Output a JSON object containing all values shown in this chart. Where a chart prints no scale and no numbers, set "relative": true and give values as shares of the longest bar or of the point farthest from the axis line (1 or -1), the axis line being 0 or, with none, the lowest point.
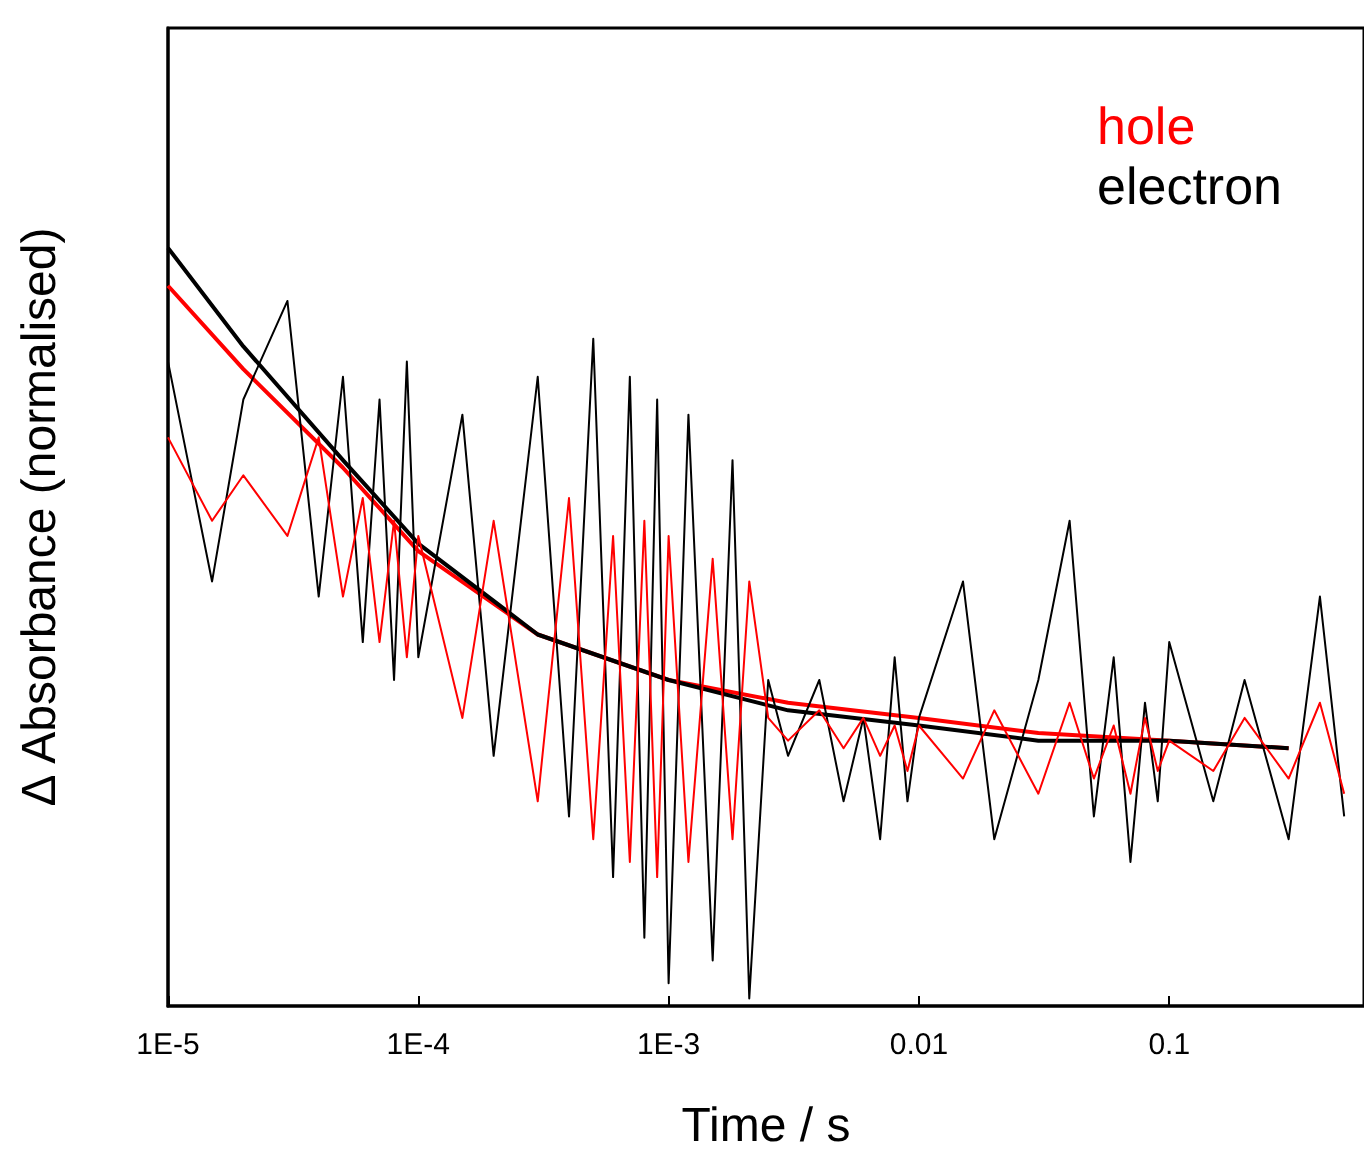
{
  "chart_data": {
    "type": "line",
    "xlabel": "Time / s",
    "ylabel": "Δ Absorbance (normalised)",
    "log": "x",
    "relative": true,
    "legend": "top right",
    "grid": false,
    "marker": "none",
    "line_style": "solid",
    "xlim": [
      1e-05,
      0.6
    ],
    "xticks": [
      {
        "value": 1e-05,
        "label": "1E-5"
      },
      {
        "value": 0.0001,
        "label": "1E-4"
      },
      {
        "value": 0.001,
        "label": "1E-3"
      },
      0.01,
      0.1
    ],
    "series": [
      {
        "name": "hole",
        "color": "#ff0000",
        "x": [
          1e-05,
          1.5e-05,
          2e-05,
          3e-05,
          4e-05,
          5e-05,
          6e-05,
          7e-05,
          8e-05,
          9e-05,
          0.0001,
          0.00015,
          0.0002,
          0.0003,
          0.0004,
          0.0005,
          0.0006,
          0.0007,
          0.0008,
          0.0009,
          0.001,
          0.0012,
          0.0015,
          0.0018,
          0.0021,
          0.0025,
          0.003,
          0.004,
          0.005,
          0.006,
          0.007,
          0.008,
          0.009,
          0.01,
          0.015,
          0.02,
          0.03,
          0.04,
          0.05,
          0.06,
          0.07,
          0.08,
          0.09,
          0.1,
          0.15,
          0.2,
          0.3,
          0.4,
          0.5
        ],
        "values": [
          0.75,
          0.64,
          0.7,
          0.62,
          0.75,
          0.54,
          0.67,
          0.48,
          0.64,
          0.46,
          0.62,
          0.38,
          0.64,
          0.27,
          0.67,
          0.22,
          0.62,
          0.19,
          0.64,
          0.17,
          0.62,
          0.19,
          0.59,
          0.22,
          0.56,
          0.38,
          0.35,
          0.39,
          0.34,
          0.38,
          0.33,
          0.37,
          0.31,
          0.37,
          0.3,
          0.39,
          0.28,
          0.4,
          0.3,
          0.37,
          0.28,
          0.38,
          0.31,
          0.35,
          0.31,
          0.38,
          0.3,
          0.4,
          0.28
        ]
      },
      {
        "name": "electron",
        "color": "#000000",
        "x": [
          1e-05,
          1.5e-05,
          2e-05,
          3e-05,
          4e-05,
          5e-05,
          6e-05,
          7e-05,
          8e-05,
          9e-05,
          0.0001,
          0.00015,
          0.0002,
          0.0003,
          0.0004,
          0.0005,
          0.0006,
          0.0007,
          0.0008,
          0.0009,
          0.001,
          0.0012,
          0.0015,
          0.0018,
          0.0021,
          0.0025,
          0.003,
          0.004,
          0.005,
          0.006,
          0.007,
          0.008,
          0.009,
          0.01,
          0.015,
          0.02,
          0.03,
          0.04,
          0.05,
          0.06,
          0.07,
          0.08,
          0.09,
          0.1,
          0.15,
          0.2,
          0.3,
          0.4,
          0.5
        ],
        "values": [
          0.85,
          0.56,
          0.8,
          0.93,
          0.54,
          0.83,
          0.48,
          0.8,
          0.43,
          0.85,
          0.46,
          0.78,
          0.33,
          0.83,
          0.25,
          0.88,
          0.17,
          0.83,
          0.09,
          0.8,
          0.03,
          0.78,
          0.06,
          0.72,
          0.01,
          0.43,
          0.33,
          0.43,
          0.27,
          0.38,
          0.22,
          0.46,
          0.27,
          0.38,
          0.56,
          0.22,
          0.43,
          0.64,
          0.25,
          0.46,
          0.19,
          0.4,
          0.27,
          0.48,
          0.27,
          0.43,
          0.22,
          0.54,
          0.25
        ]
      },
      {
        "type": "line",
        "color": "#000000",
        "x": [
          1e-05,
          2e-05,
          5e-05,
          0.0001,
          0.0003,
          0.001,
          0.003,
          0.01,
          0.03,
          0.1,
          0.3
        ],
        "values": [
          1.0,
          0.87,
          0.72,
          0.61,
          0.49,
          0.43,
          0.39,
          0.37,
          0.35,
          0.35,
          0.34
        ]
      },
      {
        "type": "line",
        "color": "#ff0000",
        "x": [
          1e-05,
          2e-05,
          5e-05,
          0.0001,
          0.0003,
          0.001,
          0.003,
          0.01,
          0.03,
          0.1,
          0.3
        ],
        "values": [
          0.95,
          0.84,
          0.71,
          0.6,
          0.49,
          0.43,
          0.4,
          0.38,
          0.36,
          0.35,
          0.34
        ]
      }
    ]
  }
}
